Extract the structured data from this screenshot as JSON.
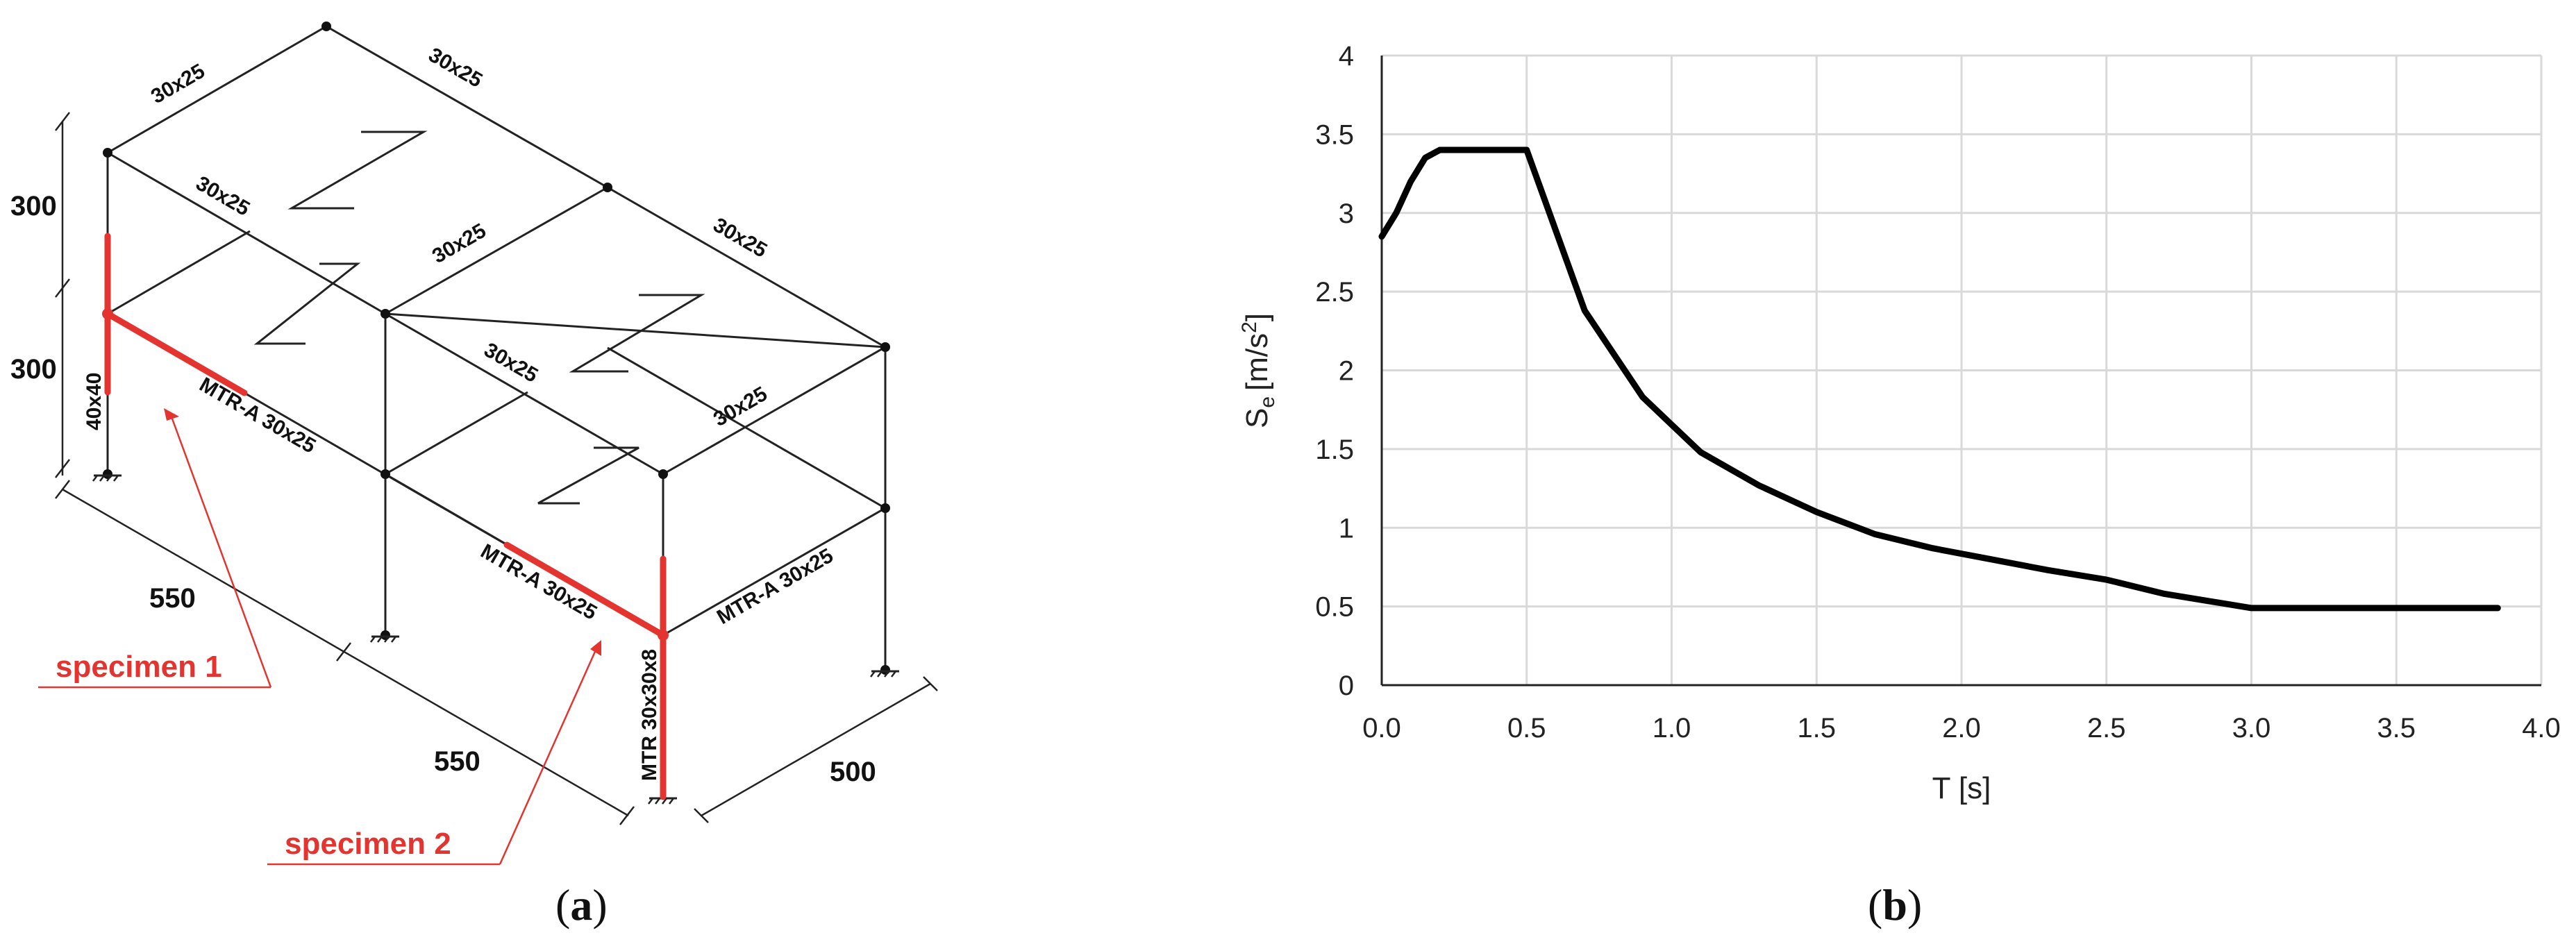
{
  "panel_a": {
    "caption_letter": "a",
    "dimensions": {
      "story_top": "300",
      "story_bottom": "300",
      "bay_1": "550",
      "bay_2": "550",
      "depth": "500"
    },
    "members": {
      "roof_back_left": "30x25",
      "roof_back_right": "30x25",
      "roof_mid_left": "30x25",
      "roof_right": "30x25",
      "roof_center": "30x25",
      "floor_mid_left": "30x25",
      "floor_center": "30x25",
      "floor_mid_right": "30x25",
      "specimen_beam_1": "MTR-A 30x25",
      "specimen_beam_2": "MTR-A 30x25",
      "side_beam": "MTR-A 30x25",
      "column_1": "40x40",
      "column_2": "MTR 30x30x8"
    },
    "specimens": {
      "label_1": "specimen 1",
      "label_2": "specimen 2"
    },
    "colors": {
      "specimen": "#e3342f",
      "frame": "#222222"
    }
  },
  "panel_b": {
    "caption_letter": "b",
    "x_label": "T [s]",
    "y_label_main": "S",
    "y_label_sub": "e",
    "y_label_units": "[m/s",
    "y_label_sup": "2",
    "y_label_close": "]"
  },
  "chart_data": {
    "type": "line",
    "title": "",
    "xlabel": "T [s]",
    "ylabel": "Se [m/s2]",
    "xlim": [
      0.0,
      4.0
    ],
    "ylim": [
      0,
      4
    ],
    "x_ticks": [
      "0.0",
      "0.5",
      "1.0",
      "1.5",
      "2.0",
      "2.5",
      "3.0",
      "3.5",
      "4.0"
    ],
    "y_ticks": [
      "0",
      "0.5",
      "1",
      "1.5",
      "2",
      "2.5",
      "3",
      "3.5",
      "4"
    ],
    "grid": true,
    "series": [
      {
        "color": "#000000",
        "x": [
          0.0,
          0.05,
          0.1,
          0.15,
          0.2,
          0.3,
          0.4,
          0.5,
          0.7,
          0.9,
          1.1,
          1.3,
          1.5,
          1.7,
          1.9,
          2.1,
          2.3,
          2.5,
          2.7,
          2.9,
          3.0,
          3.2,
          3.5,
          3.85
        ],
        "y": [
          2.85,
          3.0,
          3.2,
          3.35,
          3.4,
          3.4,
          3.4,
          3.4,
          2.38,
          1.83,
          1.48,
          1.27,
          1.1,
          0.96,
          0.87,
          0.8,
          0.73,
          0.67,
          0.58,
          0.52,
          0.49,
          0.49,
          0.49,
          0.49
        ]
      }
    ]
  }
}
